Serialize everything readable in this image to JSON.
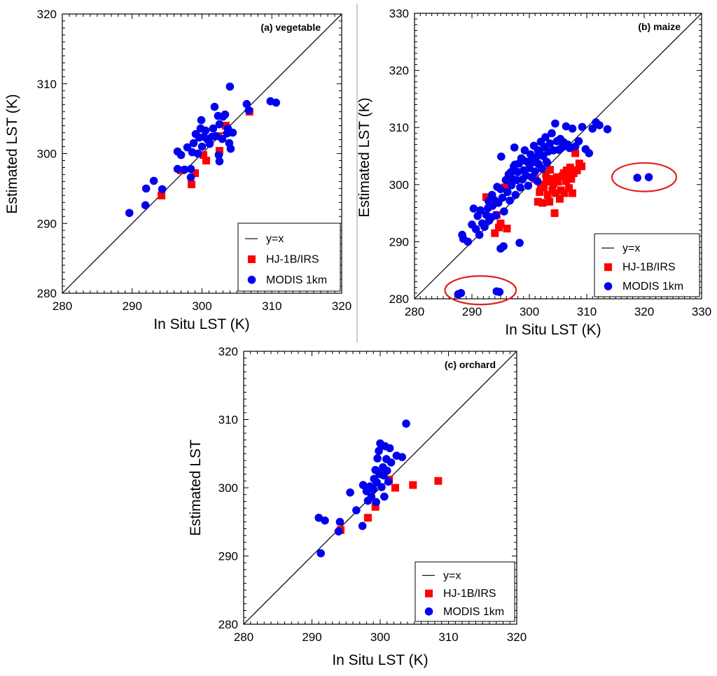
{
  "colors": {
    "hj": "#ff0000",
    "modis": "#0000ee",
    "circle": "#e02020",
    "line": "#000000"
  },
  "legend": {
    "line": "y=x",
    "hj": "HJ-1B/IRS",
    "modis": "MODIS 1km"
  },
  "chart_data": [
    {
      "type": "scatter",
      "title": "(a) vegetable",
      "xlabel": "In Situ LST (K)",
      "ylabel": "Estimated LST (K)",
      "xlim": [
        280,
        320
      ],
      "ylim": [
        280,
        320
      ],
      "xticks": [
        280,
        290,
        300,
        310,
        320
      ],
      "yticks": [
        280,
        290,
        300,
        310,
        320
      ],
      "legend_position": "bottom-right",
      "reference_line": "y=x",
      "highlight_ellipses": [],
      "series": [
        {
          "name": "HJ-1B/IRS",
          "marker": "square",
          "points": [
            [
              294.2,
              294
            ],
            [
              297,
              297.6
            ],
            [
              298.5,
              295.6
            ],
            [
              299,
              297.2
            ],
            [
              300.2,
              299.8
            ],
            [
              300.6,
              299
            ],
            [
              302.3,
              302.5
            ],
            [
              302.5,
              300.4
            ],
            [
              303.4,
              304
            ],
            [
              306.8,
              306
            ]
          ]
        },
        {
          "name": "MODIS 1km",
          "marker": "circle",
          "points": [
            [
              289.6,
              291.5
            ],
            [
              291.9,
              292.6
            ],
            [
              292,
              295
            ],
            [
              293.1,
              296.1
            ],
            [
              294.3,
              294.9
            ],
            [
              296.5,
              297.8
            ],
            [
              296.5,
              300.3
            ],
            [
              297,
              299.8
            ],
            [
              297.5,
              297.7
            ],
            [
              297.9,
              300.9
            ],
            [
              298.4,
              297.8
            ],
            [
              298.4,
              296.6
            ],
            [
              298.6,
              300.2
            ],
            [
              298.8,
              301.5
            ],
            [
              299.1,
              302.8
            ],
            [
              299.4,
              300
            ],
            [
              299.6,
              302.3
            ],
            [
              299.8,
              303.6
            ],
            [
              299.9,
              304.8
            ],
            [
              300,
              301
            ],
            [
              300.3,
              302.4
            ],
            [
              300.5,
              303.3
            ],
            [
              300.8,
              302
            ],
            [
              301.1,
              301.4
            ],
            [
              301.4,
              302.4
            ],
            [
              301.6,
              303.6
            ],
            [
              301.8,
              306.7
            ],
            [
              302,
              302.5
            ],
            [
              302.3,
              305.4
            ],
            [
              302.4,
              299.8
            ],
            [
              302.5,
              304.2
            ],
            [
              302.5,
              298.9
            ],
            [
              302.9,
              302.1
            ],
            [
              303,
              305.3
            ],
            [
              303.3,
              305.6
            ],
            [
              303.6,
              302.9
            ],
            [
              303.7,
              303.6
            ],
            [
              303.9,
              301.5
            ],
            [
              304,
              309.6
            ],
            [
              304.1,
              300.7
            ],
            [
              304.4,
              303
            ],
            [
              306.4,
              307.1
            ],
            [
              306.7,
              306.2
            ],
            [
              309.8,
              307.5
            ],
            [
              310.6,
              307.3
            ]
          ]
        }
      ]
    },
    {
      "type": "scatter",
      "title": "(b) maize",
      "xlabel": "In Situ LST (K)",
      "ylabel": "Estimated LST (K)",
      "xlim": [
        280,
        330
      ],
      "ylim": [
        280,
        330
      ],
      "xticks": [
        280,
        290,
        300,
        310,
        320,
        330
      ],
      "yticks": [
        280,
        290,
        300,
        310,
        320,
        330
      ],
      "legend_position": "bottom-right",
      "reference_line": "y=x",
      "highlight_ellipses": [
        {
          "cx": 320,
          "cy": 301.3,
          "rx": 5.6,
          "ry": 2.5
        },
        {
          "cx": 291.5,
          "cy": 281.5,
          "rx": 6.2,
          "ry": 2.5
        }
      ],
      "series": [
        {
          "name": "HJ-1B/IRS",
          "marker": "square",
          "points": [
            [
              292.5,
              297.8
            ],
            [
              294,
              291.5
            ],
            [
              294.3,
              294.7
            ],
            [
              294.7,
              292.5
            ],
            [
              295,
              293.2
            ],
            [
              295.7,
              299.5
            ],
            [
              296.1,
              292.3
            ],
            [
              301,
              301
            ],
            [
              301.5,
              297
            ],
            [
              301.8,
              298.7
            ],
            [
              302,
              300
            ],
            [
              302.3,
              296.8
            ],
            [
              302.5,
              299.5
            ],
            [
              302.9,
              301.8
            ],
            [
              303,
              300.5
            ],
            [
              303.2,
              298.2
            ],
            [
              303.5,
              297
            ],
            [
              303.6,
              302.6
            ],
            [
              303.8,
              301
            ],
            [
              304,
              299
            ],
            [
              304.2,
              300.2
            ],
            [
              304.4,
              295
            ],
            [
              304.6,
              298.5
            ],
            [
              304.8,
              301.3
            ],
            [
              305,
              300.5
            ],
            [
              305.3,
              297.5
            ],
            [
              305.5,
              299
            ],
            [
              305.8,
              301.5
            ],
            [
              306,
              302
            ],
            [
              306.1,
              298.5
            ],
            [
              306.4,
              300.6
            ],
            [
              306.5,
              302.5
            ],
            [
              306.7,
              301.2
            ],
            [
              306.9,
              299.4
            ],
            [
              307.1,
              303
            ],
            [
              307.3,
              301
            ],
            [
              307.5,
              298.5
            ],
            [
              307.7,
              302
            ],
            [
              308,
              305.5
            ],
            [
              308.3,
              302.5
            ],
            [
              308.7,
              303.7
            ],
            [
              309.1,
              303.2
            ]
          ]
        },
        {
          "name": "MODIS 1km",
          "marker": "circle",
          "points": [
            [
              287.6,
              280.8
            ],
            [
              288.1,
              281
            ],
            [
              288.3,
              291.2
            ],
            [
              288.5,
              290.5
            ],
            [
              289.3,
              290
            ],
            [
              290,
              293
            ],
            [
              290.3,
              295.8
            ],
            [
              290.7,
              292.2
            ],
            [
              291,
              294.5
            ],
            [
              291.3,
              291.2
            ],
            [
              291.5,
              295.5
            ],
            [
              291.8,
              293.2
            ],
            [
              292.2,
              292.6
            ],
            [
              292.5,
              294.7
            ],
            [
              292.8,
              295.9
            ],
            [
              293,
              293.7
            ],
            [
              293.3,
              294.3
            ],
            [
              293.6,
              296.3
            ],
            [
              293.9,
              297.3
            ],
            [
              294.2,
              294.6
            ],
            [
              294.3,
              281.3
            ],
            [
              294.6,
              296.8
            ],
            [
              294.8,
              281.2
            ],
            [
              295,
              299.2
            ],
            [
              295,
              288.8
            ],
            [
              295.1,
              304.9
            ],
            [
              295.3,
              297.7
            ],
            [
              295.5,
              289.2
            ],
            [
              295.6,
              295.3
            ],
            [
              295.9,
              300.8
            ],
            [
              296.2,
              298.7
            ],
            [
              296.4,
              301.8
            ],
            [
              296.6,
              297.2
            ],
            [
              296.9,
              299.9
            ],
            [
              297.1,
              301
            ],
            [
              297.3,
              303.2
            ],
            [
              297.4,
              306.5
            ],
            [
              297.6,
              298.2
            ],
            [
              297.8,
              300.8
            ],
            [
              298,
              302.2
            ],
            [
              298.2,
              303.7
            ],
            [
              298.3,
              289.8
            ],
            [
              298.4,
              299.5
            ],
            [
              298.6,
              304.6
            ],
            [
              298.8,
              300.9
            ],
            [
              299,
              302.5
            ],
            [
              299.2,
              306
            ],
            [
              299.4,
              301.6
            ],
            [
              299.6,
              304
            ],
            [
              299.8,
              299.8
            ],
            [
              300,
              302.9
            ],
            [
              300.2,
              305.3
            ],
            [
              300.4,
              301.3
            ],
            [
              300.6,
              303.9
            ],
            [
              300.8,
              306.8
            ],
            [
              301,
              302.3
            ],
            [
              301.2,
              304.8
            ],
            [
              301.4,
              300.6
            ],
            [
              301.6,
              303.6
            ],
            [
              301.8,
              305.9
            ],
            [
              302,
              307.5
            ],
            [
              302.2,
              302.8
            ],
            [
              302.4,
              305
            ],
            [
              302.6,
              306.6
            ],
            [
              302.8,
              308.3
            ],
            [
              303,
              304
            ],
            [
              303.3,
              305.8
            ],
            [
              303.6,
              307.2
            ],
            [
              303.9,
              309
            ],
            [
              304.2,
              306
            ],
            [
              304.5,
              310.7
            ],
            [
              304.8,
              307.6
            ],
            [
              305.1,
              306.1
            ],
            [
              305.4,
              308
            ],
            [
              305.7,
              306.5
            ],
            [
              306,
              307.4
            ],
            [
              306.4,
              310.2
            ],
            [
              306.7,
              307
            ],
            [
              307,
              306.4
            ],
            [
              307.5,
              309.8
            ],
            [
              308,
              306.7
            ],
            [
              308.6,
              307.6
            ],
            [
              309.2,
              310.1
            ],
            [
              309.8,
              306.2
            ],
            [
              310.4,
              305.5
            ],
            [
              311,
              309.8
            ],
            [
              311.6,
              310.9
            ],
            [
              312.2,
              310.4
            ],
            [
              313.6,
              309.7
            ],
            [
              318.8,
              301.2
            ],
            [
              320.8,
              301.3
            ],
            [
              297.5,
              303.5
            ],
            [
              296.8,
              302.2
            ],
            [
              298.9,
              304.3
            ],
            [
              300.5,
              304.5
            ],
            [
              301.5,
              306
            ],
            [
              303.1,
              303.8
            ],
            [
              293.5,
              298.2
            ],
            [
              292.9,
              297.1
            ],
            [
              294.4,
              299.6
            ]
          ]
        }
      ]
    },
    {
      "type": "scatter",
      "title": "(c) orchard",
      "xlabel": "In Situ LST (K)",
      "ylabel": "Estimated LST",
      "xlim": [
        280,
        320
      ],
      "ylim": [
        280,
        320
      ],
      "xticks": [
        280,
        290,
        300,
        310,
        320
      ],
      "yticks": [
        280,
        290,
        300,
        310,
        320
      ],
      "legend_position": "bottom-right",
      "reference_line": "y=x",
      "highlight_ellipses": [],
      "series": [
        {
          "name": "HJ-1B/IRS",
          "marker": "square",
          "points": [
            [
              294.2,
              293.8
            ],
            [
              298.2,
              295.6
            ],
            [
              299.3,
              297.2
            ],
            [
              301.3,
              301.2
            ],
            [
              302.2,
              300
            ],
            [
              304.8,
              300.4
            ],
            [
              308.5,
              301
            ]
          ]
        },
        {
          "name": "MODIS 1km",
          "marker": "circle",
          "points": [
            [
              291,
              295.6
            ],
            [
              291.3,
              290.4
            ],
            [
              291.9,
              295.2
            ],
            [
              293.9,
              293.6
            ],
            [
              294.1,
              295
            ],
            [
              295.6,
              299.3
            ],
            [
              296.5,
              296.7
            ],
            [
              297.4,
              294.4
            ],
            [
              297.5,
              300.4
            ],
            [
              298,
              299.5
            ],
            [
              298.2,
              298.1
            ],
            [
              298.5,
              300.2
            ],
            [
              298.7,
              298.7
            ],
            [
              299,
              299.8
            ],
            [
              299.1,
              301.3
            ],
            [
              299.3,
              302.6
            ],
            [
              299.5,
              300.8
            ],
            [
              299.6,
              304.3
            ],
            [
              299.8,
              305.4
            ],
            [
              299.9,
              302
            ],
            [
              300,
              306.5
            ],
            [
              300.2,
              300.1
            ],
            [
              300.4,
              303
            ],
            [
              300.5,
              301.8
            ],
            [
              300.7,
              306.1
            ],
            [
              300.9,
              304.2
            ],
            [
              301,
              302.5
            ],
            [
              301.2,
              300.9
            ],
            [
              301.4,
              305.8
            ],
            [
              301.6,
              303.7
            ],
            [
              302.4,
              304.7
            ],
            [
              303.2,
              304.5
            ],
            [
              303.8,
              309.4
            ],
            [
              300.6,
              298.7
            ],
            [
              299.4,
              297.9
            ]
          ]
        }
      ]
    }
  ]
}
